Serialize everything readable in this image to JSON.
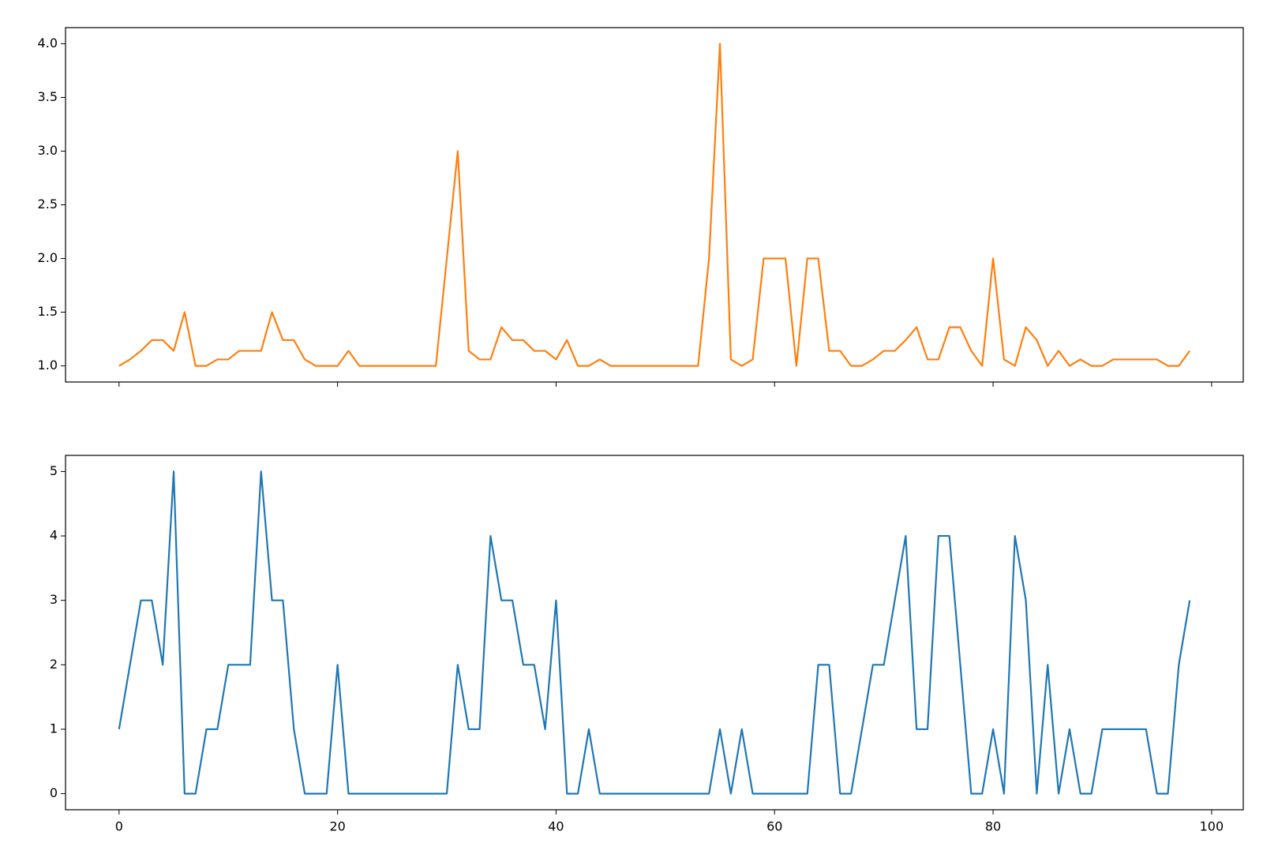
{
  "chart_data": [
    {
      "type": "line",
      "x": [
        0,
        1,
        2,
        3,
        4,
        5,
        6,
        7,
        8,
        9,
        10,
        11,
        12,
        13,
        14,
        15,
        16,
        17,
        18,
        19,
        20,
        21,
        22,
        23,
        24,
        25,
        26,
        27,
        28,
        29,
        30,
        31,
        32,
        33,
        34,
        35,
        36,
        37,
        38,
        39,
        40,
        41,
        42,
        43,
        44,
        45,
        46,
        47,
        48,
        49,
        50,
        51,
        52,
        53,
        54,
        55,
        56,
        57,
        58,
        59,
        60,
        61,
        62,
        63,
        64,
        65,
        66,
        67,
        68,
        69,
        70,
        71,
        72,
        73,
        74,
        75,
        76,
        77,
        78,
        79,
        80,
        81,
        82,
        83,
        84,
        85,
        86,
        87,
        88,
        89,
        90,
        91,
        92,
        93,
        94,
        95,
        96,
        97,
        98
      ],
      "series": [
        {
          "color": "#ff7f0e",
          "values": [
            1.0,
            1.06,
            1.14,
            1.24,
            1.24,
            1.14,
            1.5,
            1.0,
            1.0,
            1.06,
            1.06,
            1.14,
            1.14,
            1.14,
            1.5,
            1.24,
            1.24,
            1.06,
            1.0,
            1.0,
            1.0,
            1.14,
            1.0,
            1.0,
            1.0,
            1.0,
            1.0,
            1.0,
            1.0,
            1.0,
            2.0,
            3.0,
            1.14,
            1.06,
            1.06,
            1.36,
            1.24,
            1.24,
            1.14,
            1.14,
            1.06,
            1.24,
            1.0,
            1.0,
            1.06,
            1.0,
            1.0,
            1.0,
            1.0,
            1.0,
            1.0,
            1.0,
            1.0,
            1.0,
            2.0,
            4.0,
            1.06,
            1.0,
            1.06,
            2.0,
            2.0,
            2.0,
            1.0,
            2.0,
            2.0,
            1.14,
            1.14,
            1.0,
            1.0,
            1.06,
            1.14,
            1.14,
            1.24,
            1.36,
            1.06,
            1.06,
            1.36,
            1.36,
            1.14,
            1.0,
            2.0,
            1.06,
            1.0,
            1.36,
            1.24,
            1.0,
            1.14,
            1.0,
            1.06,
            1.0,
            1.0,
            1.06,
            1.06,
            1.06,
            1.06,
            1.06,
            1.0,
            1.0,
            1.14
          ]
        }
      ],
      "xlim": [
        -4.9,
        102.9
      ],
      "xticks": [
        0,
        20,
        40,
        60,
        80,
        100
      ],
      "xtick_labels": false,
      "ylim": [
        0.85,
        4.15
      ],
      "yticks": [
        {
          "value": 1,
          "label": "1.0"
        },
        1.5,
        {
          "value": 2,
          "label": "2.0"
        },
        2.5,
        {
          "value": 3,
          "label": "3.0"
        },
        3.5,
        {
          "value": 4,
          "label": "4.0"
        }
      ]
    },
    {
      "type": "line",
      "x": [
        0,
        1,
        2,
        3,
        4,
        5,
        6,
        7,
        8,
        9,
        10,
        11,
        12,
        13,
        14,
        15,
        16,
        17,
        18,
        19,
        20,
        21,
        22,
        23,
        24,
        25,
        26,
        27,
        28,
        29,
        30,
        31,
        32,
        33,
        34,
        35,
        36,
        37,
        38,
        39,
        40,
        41,
        42,
        43,
        44,
        45,
        46,
        47,
        48,
        49,
        50,
        51,
        52,
        53,
        54,
        55,
        56,
        57,
        58,
        59,
        60,
        61,
        62,
        63,
        64,
        65,
        66,
        67,
        68,
        69,
        70,
        71,
        72,
        73,
        74,
        75,
        76,
        77,
        78,
        79,
        80,
        81,
        82,
        83,
        84,
        85,
        86,
        87,
        88,
        89,
        90,
        91,
        92,
        93,
        94,
        95,
        96,
        97,
        98
      ],
      "series": [
        {
          "color": "#1f77b4",
          "values": [
            1,
            2,
            3,
            3,
            2,
            5,
            0,
            0,
            1,
            1,
            2,
            2,
            2,
            5,
            3,
            3,
            1,
            0,
            0,
            0,
            2,
            0,
            0,
            0,
            0,
            0,
            0,
            0,
            0,
            0,
            0,
            2,
            1,
            1,
            4,
            3,
            3,
            2,
            2,
            1,
            3,
            0,
            0,
            1,
            0,
            0,
            0,
            0,
            0,
            0,
            0,
            0,
            0,
            0,
            0,
            1,
            0,
            1,
            0,
            0,
            0,
            0,
            0,
            0,
            2,
            2,
            0,
            0,
            1,
            2,
            2,
            3,
            4,
            1,
            1,
            4,
            4,
            2,
            0,
            0,
            1,
            0,
            4,
            3,
            0,
            2,
            0,
            1,
            0,
            0,
            1,
            1,
            1,
            1,
            1,
            0,
            0,
            2,
            3
          ]
        }
      ],
      "xlim": [
        -4.9,
        102.9
      ],
      "xticks": [
        0,
        20,
        40,
        60,
        80,
        100
      ],
      "xtick_labels": true,
      "ylim": [
        -0.25,
        5.25
      ],
      "yticks": [
        0,
        1,
        2,
        3,
        4,
        5
      ]
    }
  ]
}
